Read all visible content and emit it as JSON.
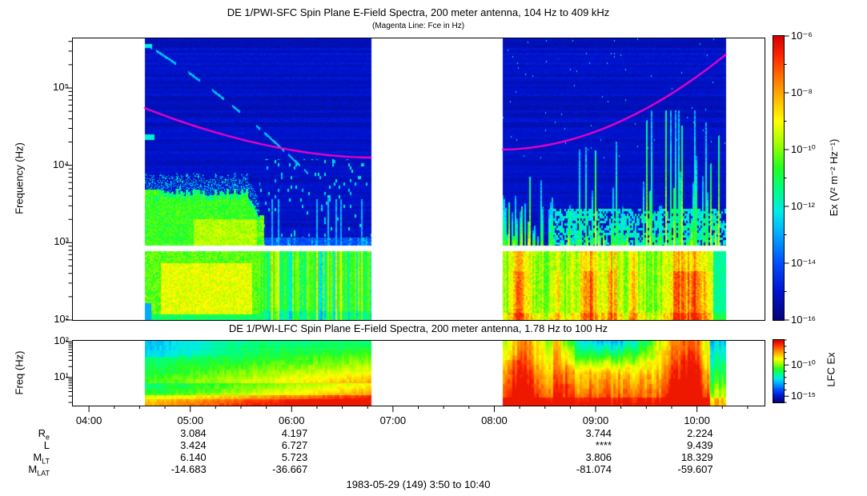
{
  "footer": "1983-05-29 (149) 3:50 to 10:40",
  "accent_colors": {
    "fce_line": "#ff00c8",
    "frame": "#000000",
    "background": "#ffffff"
  },
  "time_axis": {
    "start": "03:50",
    "end": "10:40",
    "hours": [
      "04:00",
      "05:00",
      "06:00",
      "07:00",
      "08:00",
      "09:00",
      "10:00"
    ],
    "minor_tick_minutes": 15
  },
  "ephemeris": {
    "row_labels": [
      {
        "main": "R",
        "sub": "e"
      },
      {
        "main": "L",
        "sub": ""
      },
      {
        "main": "M",
        "sub": "LT"
      },
      {
        "main": "M",
        "sub": "LAT"
      }
    ],
    "columns": [
      {
        "time": "05:00",
        "re": "3.084",
        "l": "3.424",
        "mlt": "6.140",
        "mlat": "-14.683"
      },
      {
        "time": "06:00",
        "re": "4.197",
        "l": "6.727",
        "mlt": "5.723",
        "mlat": "-36.667"
      },
      {
        "time": "09:00",
        "re": "3.744",
        "l": "****",
        "mlt": "3.806",
        "mlat": "-81.074"
      },
      {
        "time": "10:00",
        "re": "2.224",
        "l": "9.439",
        "mlt": "18.329",
        "mlat": "-59.607"
      }
    ]
  },
  "chart_data": [
    {
      "id": "sfc",
      "type": "heatmap",
      "title": "DE 1/PWI-SFC  Spin Plane E-Field Spectra, 200 meter antenna, 104 Hz to 409 kHz",
      "subtitle": "(Magenta Line: Fce in Hz)",
      "ylabel": "Frequency (Hz)",
      "y_log_range_hz": [
        100,
        447000
      ],
      "yticks": [
        {
          "label": "10⁵",
          "e": 5
        },
        {
          "label": "10⁴",
          "e": 4
        },
        {
          "label": "10³",
          "e": 3
        },
        {
          "label": "10²",
          "e": 2
        }
      ],
      "grid": false,
      "data_segments": [
        {
          "start": "04:33",
          "end": "06:47",
          "note": "plasmaspheric hiss/green band 0.2-5 kHz until 05:40 then sharp cutoff; faint descending dotted trace from 400 kHz at 04:35 to ~15 kHz by 06:00"
        },
        {
          "start": "08:05",
          "end": "10:17",
          "note": "broadband bursty cyan/green spikes below ~10 kHz intensifying after 09:00"
        }
      ],
      "band_gap_hz": [
        790,
        940
      ],
      "fce_line": {
        "color": "#ff00c8",
        "segments": [
          {
            "t0": "04:33",
            "f0": 55000,
            "t1": "06:47",
            "f1": 12600,
            "shape": 1.8
          },
          {
            "t0": "08:05",
            "f0": 16000,
            "t1": "10:17",
            "f1": 270000,
            "shape": 1.9
          }
        ]
      },
      "colorbar": {
        "label": "Ex (V² m⁻² Hz⁻¹)",
        "log_range": [
          -16,
          -6
        ],
        "ticks": [
          {
            "label": "10⁻⁶",
            "e": -6
          },
          {
            "label": "10⁻⁸",
            "e": -8
          },
          {
            "label": "10⁻¹⁰",
            "e": -10
          },
          {
            "label": "10⁻¹²",
            "e": -12
          },
          {
            "label": "10⁻¹⁴",
            "e": -14
          },
          {
            "label": "10⁻¹⁶",
            "e": -16
          }
        ]
      }
    },
    {
      "id": "lfc",
      "type": "heatmap",
      "title": "DE 1/PWI-LFC  Spin Plane E-Field Spectra, 200 meter antenna, 1.78 Hz to 100 Hz",
      "ylabel": "Freq (Hz)",
      "y_log_range_hz": [
        1.78,
        100
      ],
      "yticks": [
        {
          "label": "10²",
          "e": 2
        },
        {
          "label": "10¹",
          "e": 1
        }
      ],
      "data_segments": [
        {
          "start": "04:33",
          "end": "06:47",
          "note": "green/cyan above 10 Hz, yellow-orange-red below 5 Hz strengthening toward 06:45"
        },
        {
          "start": "08:05",
          "end": "10:17",
          "note": "intense red/orange broadband, green-cyan patches above 10 Hz near 09:20-09:40 and at right edge"
        }
      ],
      "colorbar": {
        "label": "LFC Ex",
        "log_range": [
          -16,
          -6
        ],
        "ticks": [
          {
            "label": "10⁻¹⁰",
            "e": -10
          },
          {
            "label": "10⁻¹⁵",
            "e": -15
          }
        ]
      }
    }
  ]
}
